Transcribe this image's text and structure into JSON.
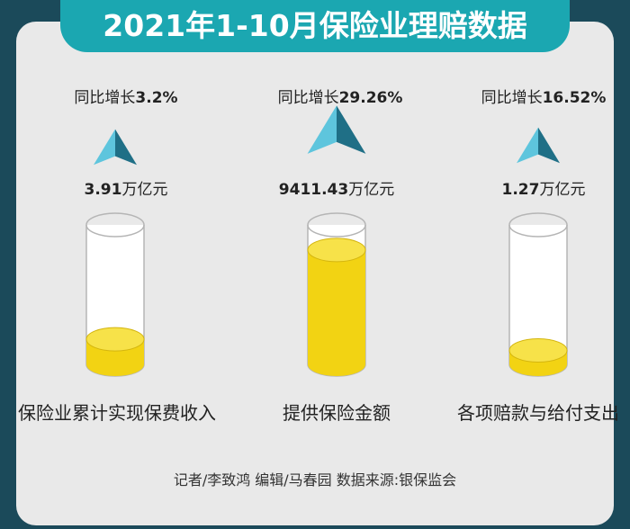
{
  "header": {
    "title": "2021年1-10月保险业理赔数据"
  },
  "chart_data": {
    "type": "bar",
    "categories": [
      "保险业累计实现保费收入",
      "提供保险金额",
      "各项赔款与给付支出"
    ],
    "values": [
      3.91,
      9411.43,
      1.27
    ],
    "unit": "万亿元",
    "growth": [
      "3.2%",
      "29.26%",
      "16.52%"
    ],
    "growth_prefix": "同比增长",
    "fill_levels": [
      0.18,
      0.82,
      0.1
    ]
  },
  "footer": {
    "text": "记者/李致鸿  编辑/马春园  数据来源:银保监会"
  },
  "colors": {
    "title_bg": "#1ba7b1",
    "liquid": "#f2d313",
    "arrow_light": "#5ec5dd",
    "arrow_dark": "#1f6f86",
    "background": "#e9e9e9"
  }
}
